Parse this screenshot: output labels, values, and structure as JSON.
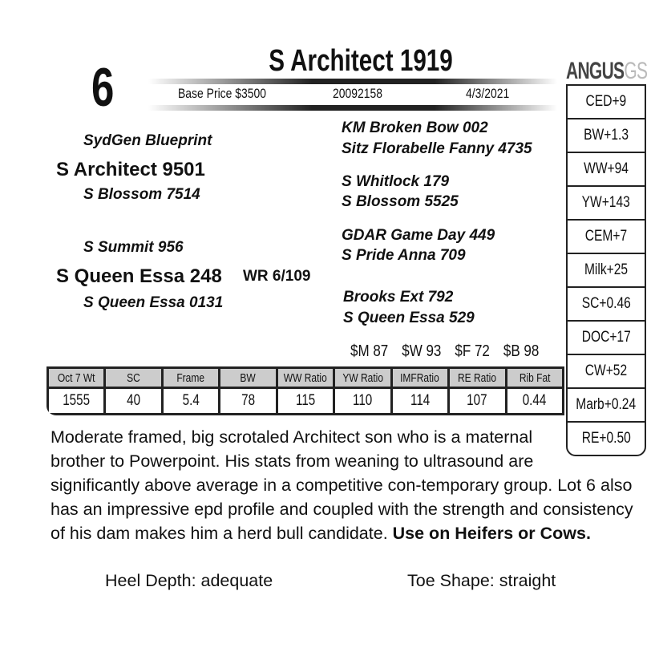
{
  "lot": "6",
  "title": "S Architect 1919",
  "base_price": "Base Price $3500",
  "reg_number": "20092158",
  "birth_date": "4/3/2021",
  "logo": {
    "main": "ANGUS",
    "suffix": "GS"
  },
  "epds": [
    "CED+9",
    "BW+1.3",
    "WW+94",
    "YW+143",
    "CEM+7",
    "Milk+25",
    "SC+0.46",
    "DOC+17",
    "CW+52",
    "Marb+0.24",
    "RE+0.50"
  ],
  "pedigree": {
    "sire": "S Architect 9501",
    "sire_sire": "SydGen Blueprint",
    "sire_dam": "S Blossom 7514",
    "dam": "S Queen Essa 248",
    "dam_ratio": "WR 6/109",
    "dam_sire": "S Summit 956",
    "dam_dam": "S Queen Essa 0131",
    "ggs": [
      "KM Broken Bow 002",
      "Sitz Florabelle Fanny 4735",
      "S Whitlock 179",
      "S Blossom 5525",
      "GDAR Game Day 449",
      "S Pride Anna 709",
      "Brooks Ext 792",
      "S Queen Essa 529"
    ]
  },
  "indexes": [
    "$M 87",
    "$W 93",
    "$F 72",
    "$B 98"
  ],
  "table": {
    "headers": [
      "Oct 7 Wt",
      "SC",
      "Frame",
      "BW",
      "WW Ratio",
      "YW Ratio",
      "IMFRatio",
      "RE Ratio",
      "Rib Fat"
    ],
    "values": [
      "1555",
      "40",
      "5.4",
      "78",
      "115",
      "110",
      "114",
      "107",
      "0.44"
    ]
  },
  "description": "Moderate framed, big scrotaled Architect son who is a maternal brother to Powerpoint.  His stats from weaning to ultrasound are significantly above average in a competitive con-temporary group.  Lot 6 also has an impressive epd profile and coupled with the strength and consistency of his dam makes him a herd bull candidate. ",
  "description_bold": "Use on Heifers or Cows.",
  "heel_depth": "Heel Depth: adequate",
  "toe_shape": "Toe Shape: straight"
}
